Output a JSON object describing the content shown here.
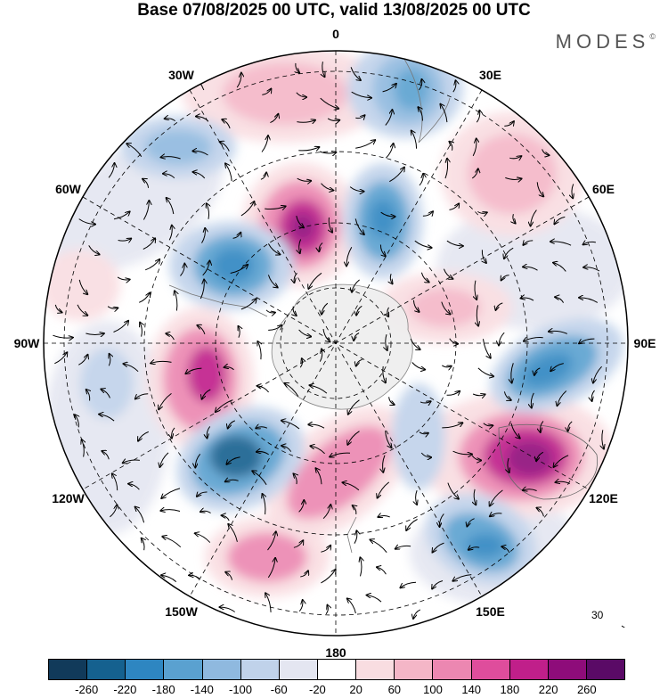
{
  "header": {
    "title": "Base 07/08/2025 00 UTC, valid 13/08/2025 00 UTC",
    "brand": "MODES",
    "brand_mark": "©"
  },
  "map": {
    "projection": "south-polar-stereographic",
    "longitude_labels": [
      "0",
      "30E",
      "60E",
      "90E",
      "120E",
      "150E",
      "180",
      "150W",
      "120W",
      "90W",
      "60W",
      "30W"
    ],
    "reference_vector": {
      "label": "30"
    }
  },
  "colorbar": {
    "colors": [
      "#113a5a",
      "#15618f",
      "#2e86c1",
      "#5aa1d0",
      "#8fb9df",
      "#c0d2ea",
      "#e4e6f1",
      "#ffffff",
      "#f9dde1",
      "#f4b6c7",
      "#ec87b1",
      "#df4d9c",
      "#c01f8a",
      "#8e0c7a",
      "#5a0a66"
    ],
    "tick_labels": [
      "-260",
      "-220",
      "-180",
      "-140",
      "-100",
      "-60",
      "-20",
      "20",
      "60",
      "100",
      "140",
      "180",
      "220",
      "260"
    ]
  }
}
